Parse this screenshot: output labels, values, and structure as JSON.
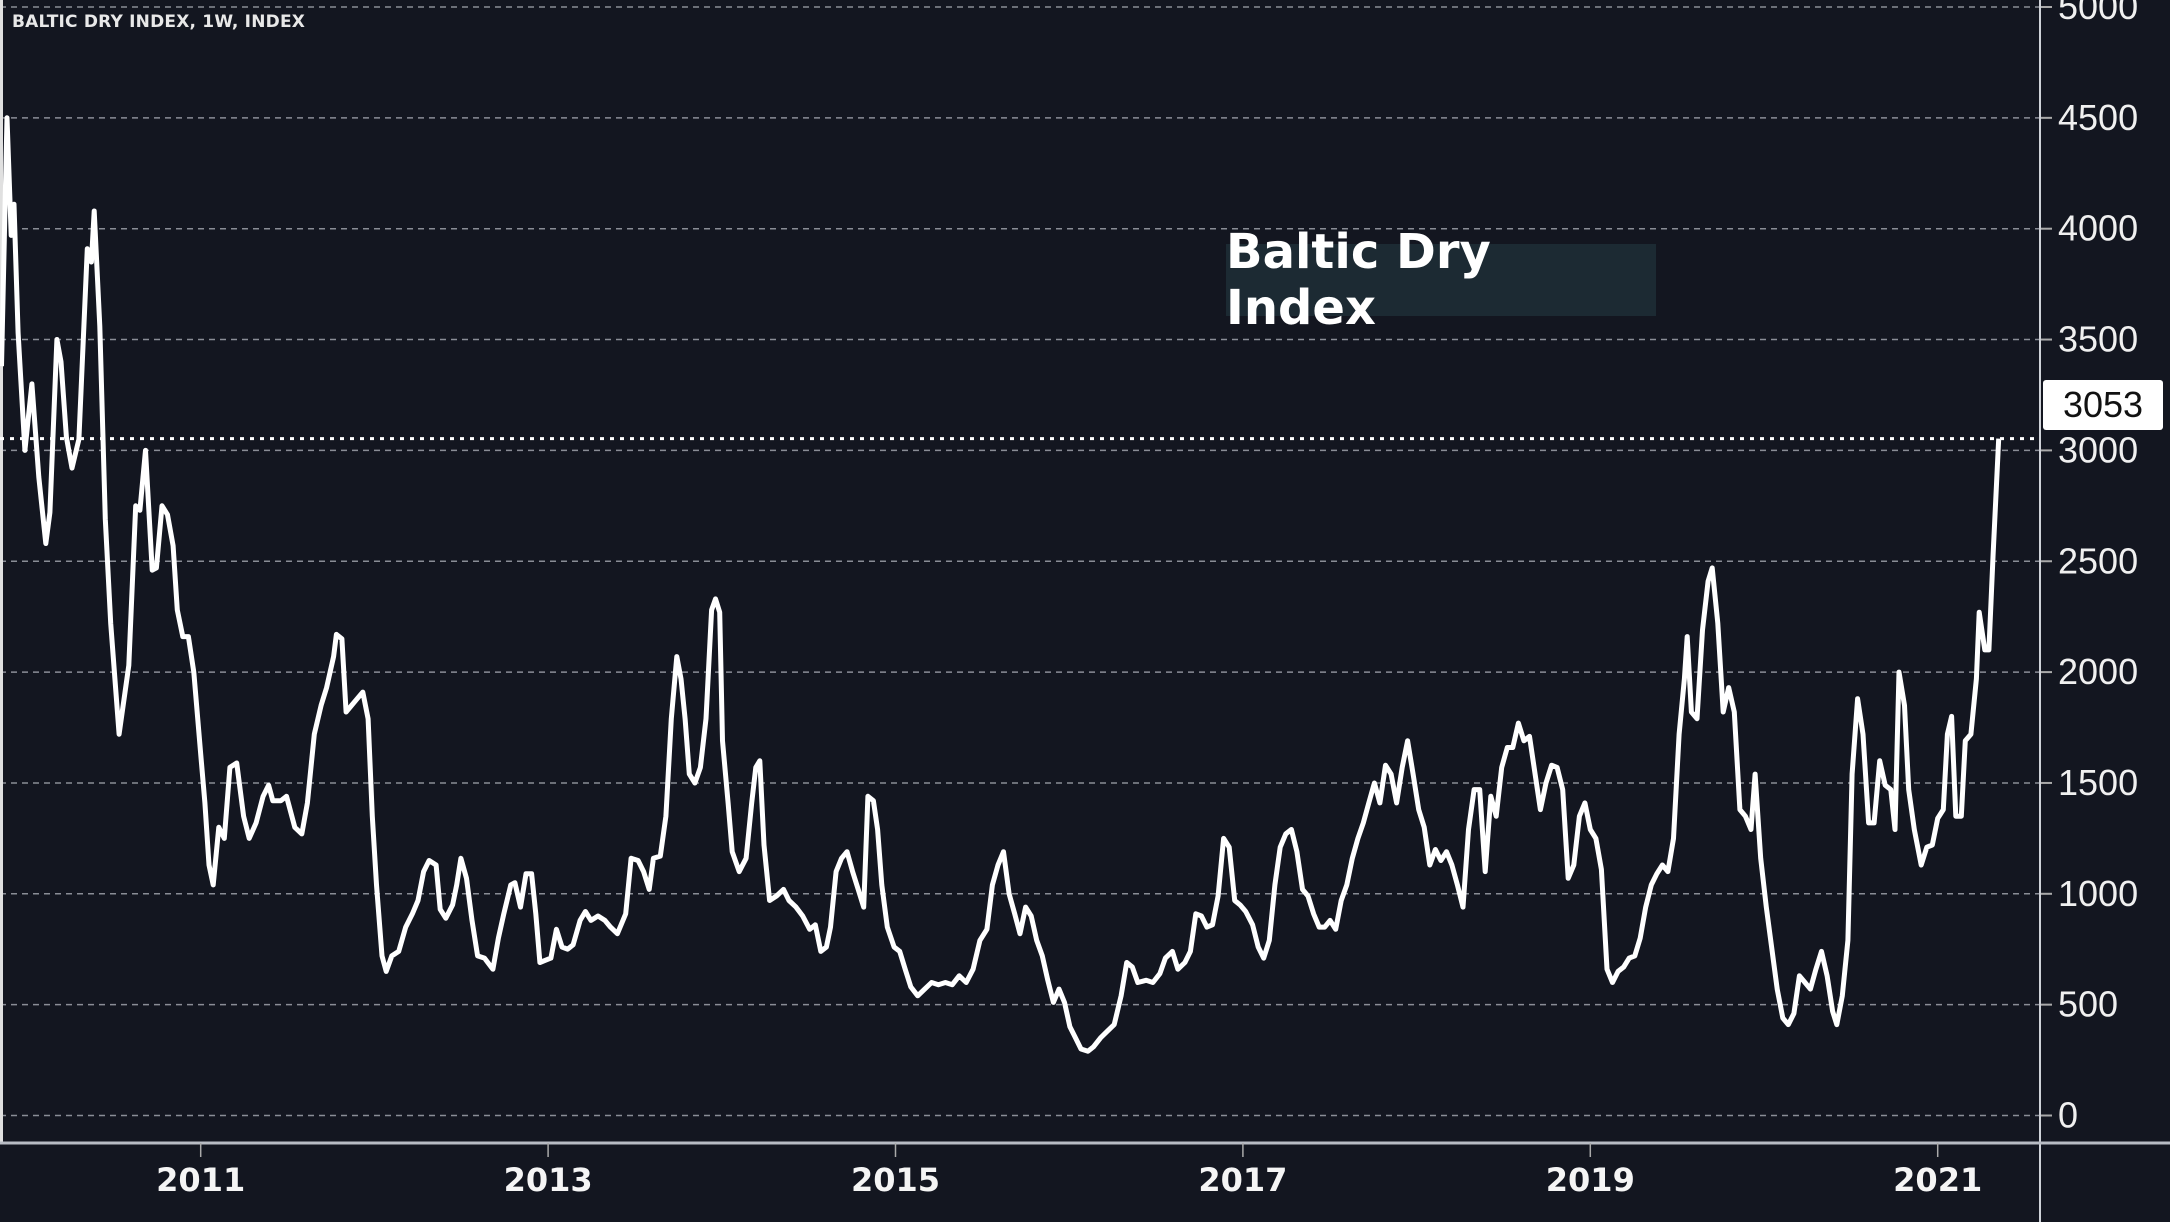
{
  "chart_data": {
    "type": "line",
    "title": "BALTIC DRY INDEX, 1W, INDEX",
    "annotation": "Baltic Dry Index",
    "last_value_label": "3053",
    "xlabel": "",
    "ylabel": "",
    "x_ticks": [
      "2011",
      "2013",
      "2015",
      "2017",
      "2019",
      "2021"
    ],
    "y_ticks": [
      "0",
      "500",
      "1000",
      "1500",
      "2000",
      "2500",
      "3000",
      "3500",
      "4000",
      "4500",
      "5000"
    ],
    "ylim": [
      0,
      5000
    ],
    "grid": true,
    "y_axis_position": "right",
    "colors": {
      "background": "#131620",
      "line": "#ffffff",
      "grid": "#8a8d96",
      "annotation_bg": "#1c2a33"
    },
    "series": [
      {
        "x": [
          2009.853,
          2009.885,
          2009.909,
          2009.925,
          2009.949,
          2009.988,
          2010.028,
          2010.068,
          2010.108,
          2010.132,
          2010.172,
          2010.196,
          2010.227,
          2010.259,
          2010.299,
          2010.347,
          2010.371,
          2010.387,
          2010.419,
          2010.451,
          2010.482,
          2010.53,
          2010.586,
          2010.626,
          2010.65,
          2010.682,
          2010.721,
          2010.745,
          2010.777,
          2010.809,
          2010.841,
          2010.865,
          2010.897,
          2010.929,
          2010.96,
          2011.0,
          2011.024,
          2011.048,
          2011.072,
          2011.104,
          2011.136,
          2011.168,
          2011.207,
          2011.247,
          2011.279,
          2011.319,
          2011.359,
          2011.391,
          2011.415,
          2011.462,
          2011.494,
          2011.542,
          2011.582,
          2011.614,
          2011.654,
          2011.693,
          2011.725,
          2011.765,
          2011.781,
          2011.813,
          2011.837,
          2011.869,
          2011.901,
          2011.933,
          2011.964,
          2011.988,
          2012.012,
          2012.044,
          2012.068,
          2012.1,
          2012.14,
          2012.18,
          2012.219,
          2012.251,
          2012.283,
          2012.315,
          2012.355,
          2012.379,
          2012.411,
          2012.45,
          2012.474,
          2012.498,
          2012.53,
          2012.562,
          2012.594,
          2012.634,
          2012.682,
          2012.714,
          2012.745,
          2012.785,
          2012.809,
          2012.841,
          2012.873,
          2012.905,
          2012.929,
          2012.953,
          2012.984,
          2013.016,
          2013.048,
          2013.08,
          2013.112,
          2013.144,
          2013.184,
          2013.215,
          2013.247,
          2013.287,
          2013.327,
          2013.359,
          2013.399,
          2013.447,
          2013.478,
          2013.518,
          2013.55,
          2013.582,
          2013.606,
          2013.646,
          2013.678,
          2013.709,
          2013.741,
          2013.765,
          2013.789,
          2013.813,
          2013.845,
          2013.877,
          2013.909,
          2013.941,
          2013.964,
          2013.988,
          2014.004,
          2014.036,
          2014.06,
          2014.1,
          2014.14,
          2014.172,
          2014.196,
          2014.219,
          2014.243,
          2014.275,
          2014.315,
          2014.355,
          2014.387,
          2014.427,
          2014.466,
          2014.506,
          2014.538,
          2014.57,
          2014.602,
          2014.626,
          2014.658,
          2014.689,
          2014.721,
          2014.753,
          2014.785,
          2014.817,
          2014.841,
          2014.873,
          2014.897,
          2014.921,
          2014.953,
          2014.992,
          2015.024,
          2015.056,
          2015.088,
          2015.128,
          2015.168,
          2015.208,
          2015.247,
          2015.287,
          2015.327,
          2015.367,
          2015.407,
          2015.447,
          2015.486,
          2015.526,
          2015.558,
          2015.59,
          2015.622,
          2015.654,
          2015.686,
          2015.717,
          2015.749,
          2015.781,
          2015.813,
          2015.845,
          2015.877,
          2015.909,
          2015.941,
          2015.973,
          2016.004,
          2016.036,
          2016.068,
          2016.108,
          2016.14,
          2016.18,
          2016.219,
          2016.259,
          2016.299,
          2016.331,
          2016.363,
          2016.395,
          2016.443,
          2016.482,
          2016.522,
          2016.554,
          2016.594,
          2016.626,
          2016.666,
          2016.698,
          2016.729,
          2016.761,
          2016.793,
          2016.825,
          2016.857,
          2016.889,
          2016.921,
          2016.953,
          2016.984,
          2017.016,
          2017.056,
          2017.088,
          2017.12,
          2017.152,
          2017.184,
          2017.215,
          2017.247,
          2017.279,
          2017.311,
          2017.343,
          2017.375,
          2017.407,
          2017.439,
          2017.471,
          2017.502,
          2017.534,
          2017.566,
          2017.598,
          2017.63,
          2017.662,
          2017.693,
          2017.725,
          2017.757,
          2017.789,
          2017.821,
          2017.853,
          2017.885,
          2017.917,
          2017.948,
          2017.98,
          2018.012,
          2018.044,
          2018.076,
          2018.108,
          2018.14,
          2018.172,
          2018.203,
          2018.235,
          2018.267,
          2018.299,
          2018.331,
          2018.363,
          2018.395,
          2018.427,
          2018.458,
          2018.49,
          2018.522,
          2018.554,
          2018.586,
          2018.618,
          2018.65,
          2018.682,
          2018.713,
          2018.745,
          2018.777,
          2018.809,
          2018.841,
          2018.873,
          2018.905,
          2018.937,
          2018.969,
          2019.0,
          2019.032,
          2019.064,
          2019.096,
          2019.128,
          2019.16,
          2019.192,
          2019.224,
          2019.256,
          2019.287,
          2019.319,
          2019.351,
          2019.383,
          2019.415,
          2019.447,
          2019.479,
          2019.511,
          2019.542,
          2019.558,
          2019.582,
          2019.614,
          2019.646,
          2019.678,
          2019.702,
          2019.734,
          2019.765,
          2019.797,
          2019.829,
          2019.861,
          2019.893,
          2019.925,
          2019.949,
          2019.981,
          2020.013,
          2020.044,
          2020.076,
          2020.108,
          2020.14,
          2020.172,
          2020.204,
          2020.236,
          2020.267,
          2020.299,
          2020.331,
          2020.363,
          2020.395,
          2020.419,
          2020.451,
          2020.483,
          2020.507,
          2020.539,
          2020.57,
          2020.602,
          2020.634,
          2020.666,
          2020.698,
          2020.73,
          2020.754,
          2020.777,
          2020.809,
          2020.833,
          2020.865,
          2020.905,
          2020.937,
          2020.969,
          2021.0,
          2021.032,
          2021.056,
          2021.08,
          2021.104,
          2021.136,
          2021.159,
          2021.191,
          2021.223,
          2021.239,
          2021.271,
          2021.295,
          2021.319,
          2021.351
        ],
        "y": [
          3380,
          4500,
          3970,
          4110,
          3530,
          3000,
          3300,
          2880,
          2580,
          2720,
          3500,
          3400,
          3060,
          2920,
          3050,
          3910,
          3850,
          4080,
          3560,
          2690,
          2220,
          1720,
          2030,
          2750,
          2730,
          3000,
          2460,
          2470,
          2750,
          2710,
          2570,
          2280,
          2160,
          2160,
          2000,
          1630,
          1410,
          1130,
          1040,
          1300,
          1250,
          1570,
          1590,
          1350,
          1250,
          1320,
          1440,
          1490,
          1420,
          1420,
          1440,
          1300,
          1270,
          1410,
          1720,
          1850,
          1930,
          2070,
          2170,
          2150,
          1820,
          1850,
          1880,
          1910,
          1790,
          1350,
          1040,
          720,
          650,
          720,
          740,
          850,
          910,
          970,
          1100,
          1150,
          1130,
          930,
          890,
          950,
          1040,
          1160,
          1070,
          880,
          720,
          710,
          660,
          800,
          910,
          1040,
          1050,
          940,
          1090,
          1090,
          910,
          690,
          700,
          710,
          840,
          760,
          750,
          770,
          880,
          920,
          880,
          900,
          880,
          850,
          820,
          910,
          1160,
          1150,
          1100,
          1020,
          1160,
          1170,
          1350,
          1790,
          2070,
          1970,
          1790,
          1540,
          1500,
          1570,
          1790,
          2280,
          2330,
          2270,
          1690,
          1410,
          1190,
          1100,
          1160,
          1410,
          1570,
          1600,
          1220,
          970,
          990,
          1020,
          970,
          940,
          900,
          840,
          860,
          740,
          760,
          850,
          1100,
          1160,
          1190,
          1100,
          1020,
          940,
          1440,
          1420,
          1290,
          1040,
          850,
          760,
          740,
          660,
          580,
          540,
          570,
          600,
          590,
          600,
          590,
          630,
          600,
          660,
          790,
          840,
          1040,
          1130,
          1190,
          1000,
          910,
          820,
          940,
          900,
          790,
          720,
          610,
          510,
          570,
          510,
          400,
          350,
          300,
          290,
          310,
          350,
          380,
          410,
          540,
          690,
          670,
          600,
          610,
          600,
          640,
          710,
          740,
          660,
          690,
          740,
          910,
          900,
          850,
          860,
          990,
          1250,
          1210,
          970,
          950,
          920,
          860,
          760,
          710,
          790,
          1040,
          1210,
          1270,
          1290,
          1190,
          1020,
          990,
          910,
          850,
          850,
          880,
          840,
          970,
          1040,
          1160,
          1250,
          1320,
          1410,
          1500,
          1410,
          1580,
          1540,
          1410,
          1570,
          1690,
          1540,
          1380,
          1300,
          1130,
          1200,
          1150,
          1190,
          1130,
          1040,
          940,
          1290,
          1470,
          1470,
          1100,
          1440,
          1350,
          1570,
          1660,
          1660,
          1770,
          1690,
          1710,
          1540,
          1380,
          1500,
          1580,
          1570,
          1470,
          1070,
          1130,
          1350,
          1410,
          1290,
          1250,
          1110,
          660,
          600,
          650,
          670,
          710,
          720,
          800,
          940,
          1040,
          1090,
          1130,
          1100,
          1250,
          1720,
          1970,
          2160,
          1820,
          1790,
          2190,
          2410,
          2470,
          2220,
          1820,
          1930,
          1820,
          1380,
          1350,
          1290,
          1540,
          1160,
          940,
          760,
          570,
          440,
          410,
          460,
          630,
          600,
          570,
          660,
          740,
          630,
          470,
          410,
          540,
          790,
          1540,
          1880,
          1720,
          1320,
          1320,
          1600,
          1490,
          1470,
          1290,
          2000,
          1850,
          1470,
          1290,
          1130,
          1210,
          1220,
          1340,
          1380,
          1720,
          1800,
          1350,
          1350,
          1690,
          1720,
          1970,
          2270,
          2100,
          2100,
          2530,
          3053
        ]
      }
    ]
  }
}
